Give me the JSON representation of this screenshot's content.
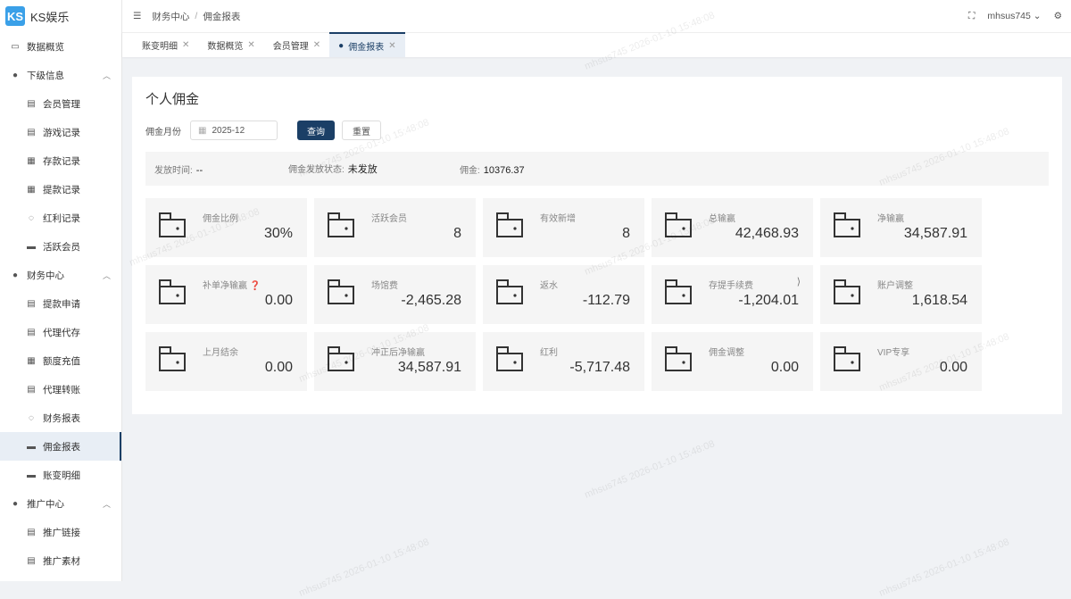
{
  "app": {
    "name": "KS娱乐",
    "logo": "KS"
  },
  "sidebar": [
    {
      "label": "数据概览",
      "icon": "monitor-icon",
      "type": "top"
    },
    {
      "label": "下级信息",
      "icon": "user-icon",
      "type": "top",
      "expanded": true
    },
    {
      "label": "会员管理",
      "icon": "doc-icon",
      "type": "sub"
    },
    {
      "label": "游戏记录",
      "icon": "doc-icon",
      "type": "sub"
    },
    {
      "label": "存款记录",
      "icon": "calendar-icon",
      "type": "sub"
    },
    {
      "label": "提款记录",
      "icon": "calendar-icon",
      "type": "sub"
    },
    {
      "label": "红利记录",
      "icon": "gear-icon",
      "type": "sub"
    },
    {
      "label": "活跃会员",
      "icon": "card-icon",
      "type": "sub"
    },
    {
      "label": "财务中心",
      "icon": "user-icon",
      "type": "top",
      "expanded": true
    },
    {
      "label": "提款申请",
      "icon": "doc-icon",
      "type": "sub"
    },
    {
      "label": "代理代存",
      "icon": "doc-icon",
      "type": "sub"
    },
    {
      "label": "额度充值",
      "icon": "calendar-icon",
      "type": "sub"
    },
    {
      "label": "代理转账",
      "icon": "doc-icon",
      "type": "sub"
    },
    {
      "label": "财务报表",
      "icon": "gear-icon",
      "type": "sub"
    },
    {
      "label": "佣金报表",
      "icon": "card-icon",
      "type": "sub",
      "active": true
    },
    {
      "label": "账变明细",
      "icon": "card-icon",
      "type": "sub"
    },
    {
      "label": "推广中心",
      "icon": "user-icon",
      "type": "top",
      "expanded": true
    },
    {
      "label": "推广链接",
      "icon": "doc-icon",
      "type": "sub"
    },
    {
      "label": "推广素材",
      "icon": "doc-icon",
      "type": "sub"
    }
  ],
  "header": {
    "breadcrumb": [
      "财务中心",
      "佣金报表"
    ],
    "separator": "/",
    "user": "mhsus745"
  },
  "tabs": [
    {
      "label": "账变明细"
    },
    {
      "label": "数据概览"
    },
    {
      "label": "会员管理"
    },
    {
      "label": "佣金报表",
      "active": true
    }
  ],
  "main": {
    "title": "个人佣金",
    "month_label": "佣金月份",
    "month_value": "2025-12",
    "query_label": "查询",
    "reset_label": "重置",
    "info": {
      "time_label": "发放时间:",
      "time_value": "--",
      "status_label": "佣金发放状态:",
      "status_value": "未发放",
      "amount_label": "佣金:",
      "amount_value": "10376.37"
    },
    "cards": [
      {
        "label": "佣金比例",
        "value": "30%"
      },
      {
        "label": "活跃会员",
        "value": "8"
      },
      {
        "label": "有效新增",
        "value": "8"
      },
      {
        "label": "总输赢",
        "value": "42,468.93"
      },
      {
        "label": "净输赢",
        "value": "34,587.91"
      },
      {
        "label": "补单净输赢",
        "value": "0.00",
        "help": true
      },
      {
        "label": "场馆费",
        "value": "-2,465.28"
      },
      {
        "label": "返水",
        "value": "-112.79"
      },
      {
        "label": "存提手续费",
        "value": "-1,204.01",
        "link": true
      },
      {
        "label": "账户调整",
        "value": "1,618.54"
      },
      {
        "label": "上月结余",
        "value": "0.00"
      },
      {
        "label": "冲正后净输赢",
        "value": "34,587.91"
      },
      {
        "label": "红利",
        "value": "-5,717.48"
      },
      {
        "label": "佣金调整",
        "value": "0.00"
      },
      {
        "label": "VIP专享",
        "value": "0.00"
      }
    ]
  },
  "watermark": "mhsus745 2026-01-10 15:48:08"
}
